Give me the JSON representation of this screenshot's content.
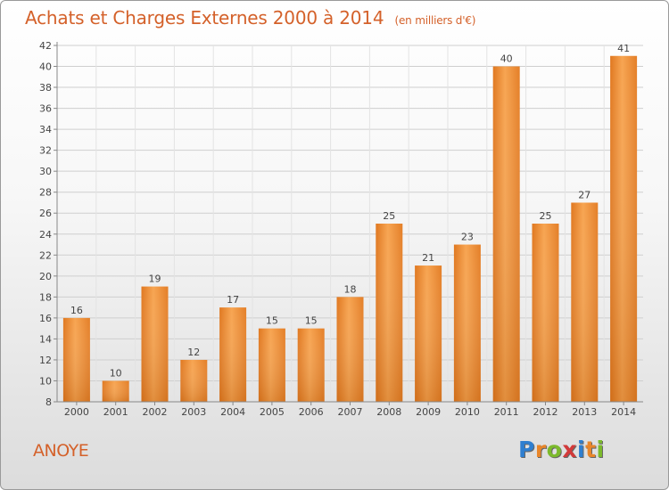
{
  "chart_data": {
    "type": "bar",
    "title": "Achats et Charges Externes 2000 à 2014",
    "unit_label": "(en milliers d'€)",
    "categories": [
      "2000",
      "2001",
      "2002",
      "2003",
      "2004",
      "2005",
      "2006",
      "2007",
      "2008",
      "2009",
      "2010",
      "2011",
      "2012",
      "2013",
      "2014"
    ],
    "values": [
      16,
      10,
      19,
      12,
      17,
      15,
      15,
      18,
      25,
      21,
      23,
      40,
      25,
      27,
      41
    ],
    "ylim": [
      8,
      42
    ],
    "yticks": [
      8,
      10,
      12,
      14,
      16,
      18,
      20,
      22,
      24,
      26,
      28,
      30,
      32,
      34,
      36,
      38,
      40,
      42
    ],
    "grid": true,
    "bar_color": "#f0923a"
  },
  "commune": "ANOYE",
  "logo": {
    "letters": [
      "P",
      "r",
      "o",
      "x",
      "i",
      "t",
      "i"
    ]
  }
}
